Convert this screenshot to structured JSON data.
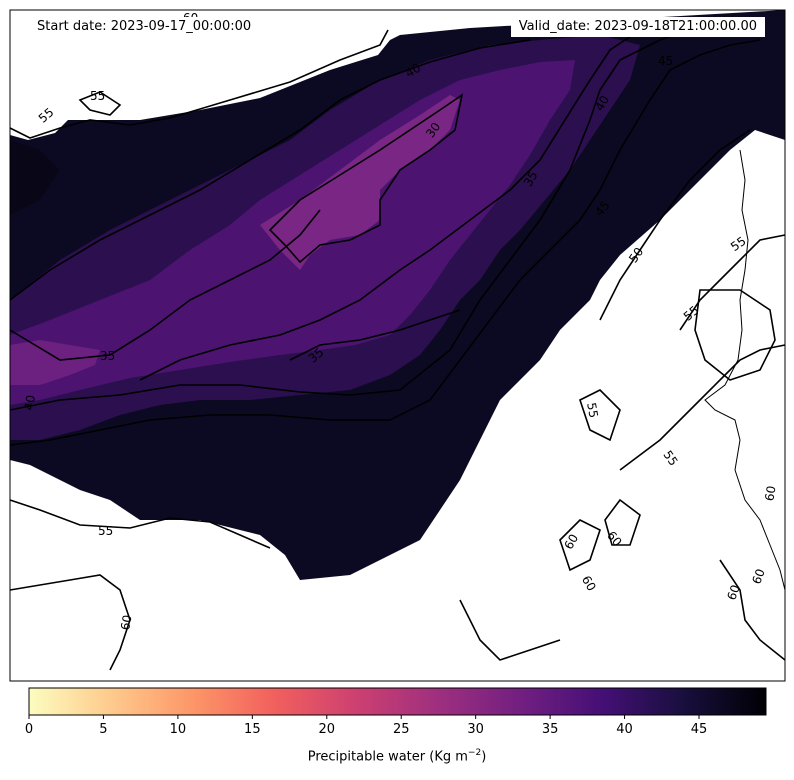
{
  "header": {
    "start_date": "Start date: 2023-09-17_00:00:00",
    "valid_date": "Valid_date: 2023-09-18T21:00:00.00"
  },
  "colorbar": {
    "label": "Precipitable water (Kg m",
    "label_sup": "−2",
    "label_end": ")",
    "range": [
      0,
      49.5
    ],
    "ticks": [
      "0",
      "5",
      "10",
      "15",
      "20",
      "25",
      "30",
      "35",
      "40",
      "45"
    ],
    "colormap": "magma_r",
    "colors": [
      "#fcfdbf",
      "#feca8d",
      "#fd9668",
      "#f1605d",
      "#cd4071",
      "#9e2f7f",
      "#721f81",
      "#440f76",
      "#180f3d",
      "#000004"
    ]
  },
  "contour_labels": [
    "30",
    "35",
    "35",
    "35",
    "40",
    "40",
    "40",
    "45",
    "45",
    "50",
    "55",
    "55",
    "55",
    "55",
    "55",
    "55",
    "55",
    "60",
    "60",
    "60",
    "60",
    "60",
    "60",
    "60",
    "60"
  ]
}
